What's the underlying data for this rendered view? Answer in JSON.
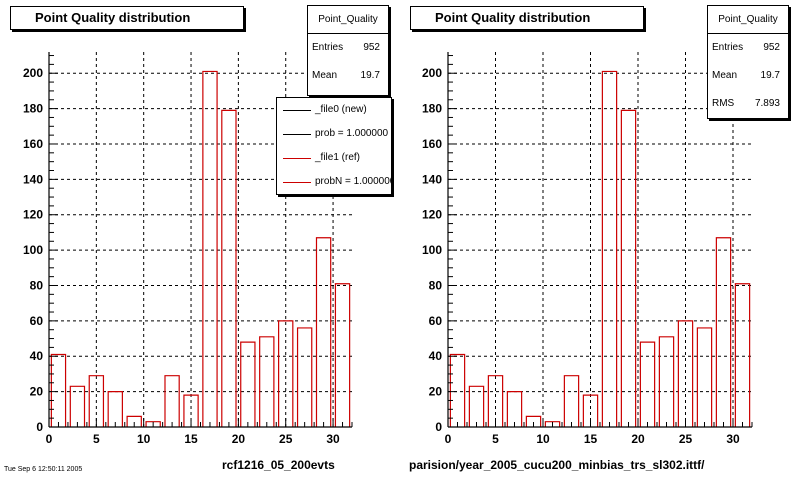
{
  "colors": {
    "bar": "#cc0000",
    "axis": "#000000",
    "grid": "#000000",
    "background": "#ffffff"
  },
  "chart_data": [
    {
      "type": "bar",
      "title": "Point Quality distribution",
      "x": [
        1,
        3,
        5,
        7,
        9,
        11,
        13,
        15,
        17,
        19,
        21,
        23,
        25,
        27,
        29,
        31
      ],
      "values": [
        41,
        23,
        29,
        20,
        6,
        3,
        29,
        18,
        201,
        179,
        48,
        51,
        60,
        56,
        107,
        81
      ],
      "xlim": [
        0,
        32
      ],
      "ylim": [
        0,
        212
      ],
      "xticks": [
        "0",
        "5",
        "10",
        "15",
        "20",
        "25",
        "30"
      ],
      "yticks": [
        "0",
        "20",
        "40",
        "60",
        "80",
        "100",
        "120",
        "140",
        "160",
        "180",
        "200"
      ],
      "grid": true,
      "legend_position": "top-right"
    },
    {
      "type": "bar",
      "title": "Point Quality distribution",
      "x": [
        1,
        3,
        5,
        7,
        9,
        11,
        13,
        15,
        17,
        19,
        21,
        23,
        25,
        27,
        29,
        31
      ],
      "values": [
        41,
        23,
        29,
        20,
        6,
        3,
        29,
        18,
        201,
        179,
        48,
        51,
        60,
        56,
        107,
        81
      ],
      "xlim": [
        0,
        32
      ],
      "ylim": [
        0,
        212
      ],
      "xticks": [
        "0",
        "5",
        "10",
        "15",
        "20",
        "25",
        "30"
      ],
      "yticks": [
        "0",
        "20",
        "40",
        "60",
        "80",
        "100",
        "120",
        "140",
        "160",
        "180",
        "200"
      ],
      "grid": true
    }
  ],
  "left": {
    "title": "Point Quality distribution",
    "stats": {
      "name": "Point_Quality",
      "entries_label": "Entries",
      "entries_value": "952",
      "mean_label": "Mean",
      "mean_value": "19.7"
    },
    "legend": [
      "_file0 (new)",
      "prob = 1.000000",
      "_file1 (ref)",
      "probN = 1.000000"
    ],
    "footer": "rcf1216_05_200evts"
  },
  "right": {
    "title": "Point Quality distribution",
    "stats": {
      "name": "Point_Quality",
      "entries_label": "Entries",
      "entries_value": "952",
      "mean_label": "Mean",
      "mean_value": "19.7",
      "rms_label": "RMS",
      "rms_value": "7.893"
    },
    "footer": "parision/year_2005_cucu200_minbias_trs_sl302.ittf/"
  },
  "bottom_note": "Tue Sep  6 12:50:11 2005"
}
